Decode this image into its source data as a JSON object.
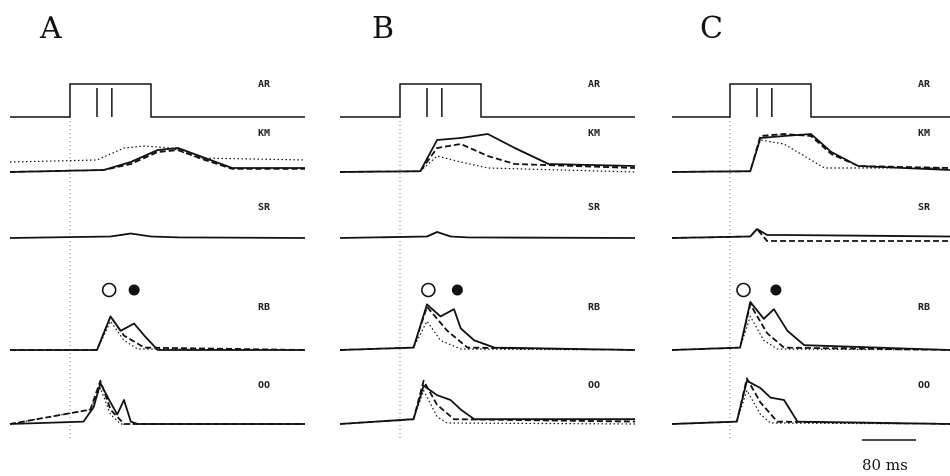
{
  "figure": {
    "scale_bar_label": "80 ms",
    "panels": [
      {
        "letter": "A",
        "row_labels": [
          "AR",
          "KM",
          "SR",
          "RB",
          "OO"
        ]
      },
      {
        "letter": "B",
        "row_labels": [
          "AR",
          "KM",
          "SR",
          "RB",
          "OO"
        ]
      },
      {
        "letter": "C",
        "row_labels": [
          "AR",
          "KM",
          "SR",
          "RB",
          "OO"
        ]
      }
    ]
  },
  "chart_data": [
    {
      "type": "line",
      "panel": "A",
      "x_units": "ms",
      "stimulus": {
        "pulse": [
          0,
          120
        ],
        "inner_edges": [
          40,
          62
        ]
      },
      "rows": [
        {
          "label": "KM",
          "series": [
            {
              "style": "solid",
              "x": [
                0,
                50,
                90,
                130,
                160,
                200,
                240,
                300
              ],
              "y": [
                0,
                0.05,
                0.25,
                0.55,
                0.6,
                0.35,
                0.1,
                0.1
              ]
            },
            {
              "style": "dashed",
              "x": [
                0,
                50,
                90,
                130,
                160,
                200,
                240,
                300
              ],
              "y": [
                0,
                0.05,
                0.2,
                0.5,
                0.55,
                0.3,
                0.08,
                0.08
              ]
            },
            {
              "style": "dotted",
              "x": [
                0,
                40,
                80,
                110,
                150,
                190,
                300
              ],
              "y": [
                0.25,
                0.3,
                0.6,
                0.65,
                0.6,
                0.35,
                0.3
              ]
            }
          ]
        },
        {
          "label": "SR",
          "series": [
            {
              "style": "solid",
              "x": [
                0,
                60,
                90,
                120,
                160,
                300
              ],
              "y": [
                0,
                0.05,
                0.15,
                0.05,
                0.02,
                0
              ]
            }
          ]
        },
        {
          "label": "RB",
          "markers": {
            "open": 58,
            "filled": 95
          },
          "series": [
            {
              "style": "solid",
              "x": [
                0,
                40,
                60,
                75,
                95,
                110,
                130,
                300
              ],
              "y": [
                0,
                0,
                0.7,
                0.4,
                0.55,
                0.3,
                0,
                0
              ]
            },
            {
              "style": "dashed",
              "x": [
                0,
                40,
                60,
                80,
                110,
                300
              ],
              "y": [
                0,
                0,
                0.7,
                0.3,
                0.05,
                0
              ]
            },
            {
              "style": "dotted",
              "x": [
                0,
                40,
                60,
                80,
                100,
                300
              ],
              "y": [
                0,
                0,
                0.6,
                0.2,
                0.02,
                0
              ]
            }
          ]
        },
        {
          "label": "OO",
          "series": [
            {
              "style": "solid",
              "x": [
                0,
                20,
                35,
                45,
                60,
                70,
                80,
                90,
                100,
                300
              ],
              "y": [
                0,
                0.05,
                0.35,
                0.85,
                0.45,
                0.2,
                0.5,
                0.05,
                0,
                0
              ]
            },
            {
              "style": "dashed",
              "x": [
                0,
                30,
                45,
                60,
                80,
                300
              ],
              "y": [
                0,
                0.3,
                0.9,
                0.3,
                0,
                0
              ]
            },
            {
              "style": "dotted",
              "x": [
                0,
                30,
                45,
                60,
                75,
                300
              ],
              "y": [
                0,
                0.3,
                0.75,
                0.2,
                0,
                0
              ]
            }
          ]
        }
      ]
    },
    {
      "type": "line",
      "panel": "B",
      "x_units": "ms",
      "stimulus": {
        "pulse": [
          0,
          120
        ],
        "inner_edges": [
          40,
          62
        ]
      },
      "rows": [
        {
          "label": "KM",
          "series": [
            {
              "style": "solid",
              "x": [
                0,
                30,
                55,
                90,
                130,
                170,
                220,
                300
              ],
              "y": [
                0,
                0.02,
                0.8,
                0.85,
                0.95,
                0.6,
                0.2,
                0.15
              ]
            },
            {
              "style": "dashed",
              "x": [
                0,
                30,
                55,
                90,
                130,
                170,
                300
              ],
              "y": [
                0,
                0.02,
                0.6,
                0.7,
                0.4,
                0.2,
                0.1
              ]
            },
            {
              "style": "dotted",
              "x": [
                0,
                30,
                55,
                90,
                130,
                300
              ],
              "y": [
                0,
                0.02,
                0.4,
                0.25,
                0.1,
                0
              ]
            }
          ]
        },
        {
          "label": "SR",
          "series": [
            {
              "style": "solid",
              "x": [
                0,
                40,
                55,
                75,
                100,
                300
              ],
              "y": [
                0,
                0.05,
                0.2,
                0.05,
                0.02,
                0
              ]
            }
          ]
        },
        {
          "label": "RB",
          "markers": {
            "open": 42,
            "filled": 85
          },
          "series": [
            {
              "style": "solid",
              "x": [
                0,
                20,
                40,
                60,
                80,
                90,
                110,
                140,
                300
              ],
              "y": [
                0,
                0.05,
                0.95,
                0.7,
                0.85,
                0.45,
                0.2,
                0.05,
                0
              ]
            },
            {
              "style": "dashed",
              "x": [
                0,
                20,
                40,
                70,
                100,
                300
              ],
              "y": [
                0,
                0.05,
                0.9,
                0.4,
                0.05,
                0
              ]
            },
            {
              "style": "dotted",
              "x": [
                0,
                20,
                40,
                60,
                90,
                300
              ],
              "y": [
                0,
                0.05,
                0.6,
                0.2,
                0.02,
                0
              ]
            }
          ]
        },
        {
          "label": "OO",
          "series": [
            {
              "style": "solid",
              "x": [
                0,
                20,
                35,
                55,
                75,
                90,
                110,
                300
              ],
              "y": [
                0,
                0.1,
                0.8,
                0.6,
                0.5,
                0.3,
                0.1,
                0.1
              ]
            },
            {
              "style": "dashed",
              "x": [
                0,
                20,
                35,
                55,
                80,
                300
              ],
              "y": [
                0,
                0.1,
                0.9,
                0.4,
                0.1,
                0.05
              ]
            },
            {
              "style": "dotted",
              "x": [
                0,
                20,
                35,
                55,
                70,
                300
              ],
              "y": [
                0,
                0.1,
                0.7,
                0.15,
                0.02,
                0
              ]
            }
          ]
        }
      ]
    },
    {
      "type": "line",
      "panel": "C",
      "x_units": "ms",
      "stimulus": {
        "pulse": [
          0,
          120
        ],
        "inner_edges": [
          40,
          62
        ]
      },
      "rows": [
        {
          "label": "KM",
          "series": [
            {
              "style": "solid",
              "x": [
                0,
                30,
                45,
                80,
                120,
                150,
                190,
                300
              ],
              "y": [
                0,
                0.02,
                0.85,
                0.9,
                0.95,
                0.5,
                0.15,
                0.05
              ]
            },
            {
              "style": "dashed",
              "x": [
                0,
                30,
                45,
                80,
                120,
                150,
                190,
                300
              ],
              "y": [
                0,
                0.02,
                0.9,
                0.95,
                0.9,
                0.45,
                0.15,
                0.1
              ]
            },
            {
              "style": "dotted",
              "x": [
                0,
                30,
                45,
                80,
                110,
                140,
                300
              ],
              "y": [
                0,
                0.02,
                0.8,
                0.7,
                0.4,
                0.1,
                0.1
              ]
            }
          ]
        },
        {
          "label": "SR",
          "series": [
            {
              "style": "solid",
              "x": [
                0,
                30,
                40,
                55,
                80,
                300
              ],
              "y": [
                0,
                0.05,
                0.3,
                0.1,
                0.1,
                0.05
              ]
            },
            {
              "style": "dashed",
              "x": [
                0,
                30,
                40,
                55,
                80,
                300
              ],
              "y": [
                0,
                0.05,
                0.3,
                -0.1,
                -0.1,
                -0.1
              ]
            }
          ]
        },
        {
          "label": "RB",
          "markers": {
            "open": 20,
            "filled": 68
          },
          "series": [
            {
              "style": "solid",
              "x": [
                0,
                15,
                30,
                50,
                65,
                85,
                110,
                300
              ],
              "y": [
                0,
                0.05,
                1.0,
                0.65,
                0.85,
                0.4,
                0.1,
                0
              ]
            },
            {
              "style": "dashed",
              "x": [
                0,
                15,
                30,
                55,
                80,
                300
              ],
              "y": [
                0,
                0.05,
                0.95,
                0.35,
                0.05,
                0
              ]
            },
            {
              "style": "dotted",
              "x": [
                0,
                15,
                30,
                50,
                70,
                300
              ],
              "y": [
                0,
                0.05,
                0.7,
                0.2,
                0.02,
                0
              ]
            }
          ]
        },
        {
          "label": "OO",
          "series": [
            {
              "style": "solid",
              "x": [
                0,
                10,
                25,
                45,
                60,
                80,
                100,
                300
              ],
              "y": [
                0,
                0.05,
                0.9,
                0.75,
                0.55,
                0.5,
                0.05,
                0
              ]
            },
            {
              "style": "dashed",
              "x": [
                0,
                10,
                25,
                45,
                70,
                300
              ],
              "y": [
                0,
                0.05,
                0.95,
                0.45,
                0.05,
                0
              ]
            },
            {
              "style": "dotted",
              "x": [
                0,
                10,
                25,
                45,
                60,
                300
              ],
              "y": [
                0,
                0.05,
                0.7,
                0.2,
                0.02,
                0
              ]
            }
          ]
        }
      ]
    }
  ]
}
